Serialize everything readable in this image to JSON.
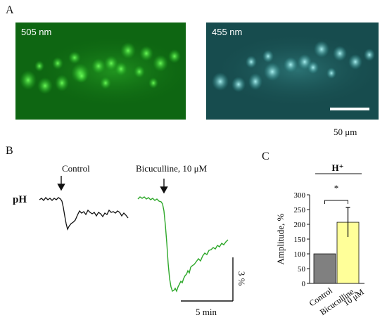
{
  "panels": {
    "a": {
      "letter": "A",
      "green_label": "505 nm",
      "cyan_label": "455 nm",
      "scale_label": "50 μm",
      "green_color": "#0f7a14",
      "cyan_color": "#1e6e6e"
    },
    "b": {
      "letter": "B",
      "row_label": "pH",
      "control_label": "Control",
      "bic_label": "Bicuculline, 10 μM",
      "vscale_label": "3 %",
      "hscale_label": "5 min",
      "control_color": "#111111",
      "bic_color": "#2ea82a"
    },
    "c": {
      "letter": "C",
      "title": "H⁺",
      "significance": "*",
      "ylabel": "Amplitude, %"
    }
  },
  "chart_data": {
    "type": "bar",
    "title": "H⁺",
    "ylabel": "Amplitude, %",
    "ylim": [
      0,
      300
    ],
    "yticks": [
      "0",
      "50",
      "100",
      "150",
      "200",
      "250",
      "300"
    ],
    "categories": [
      "Control",
      "Bicuculline,\n10 μM"
    ],
    "values": [
      100,
      207
    ],
    "errors": [
      0,
      50
    ],
    "colors": [
      "#808080",
      "#ffff99"
    ],
    "annotation": "*"
  }
}
